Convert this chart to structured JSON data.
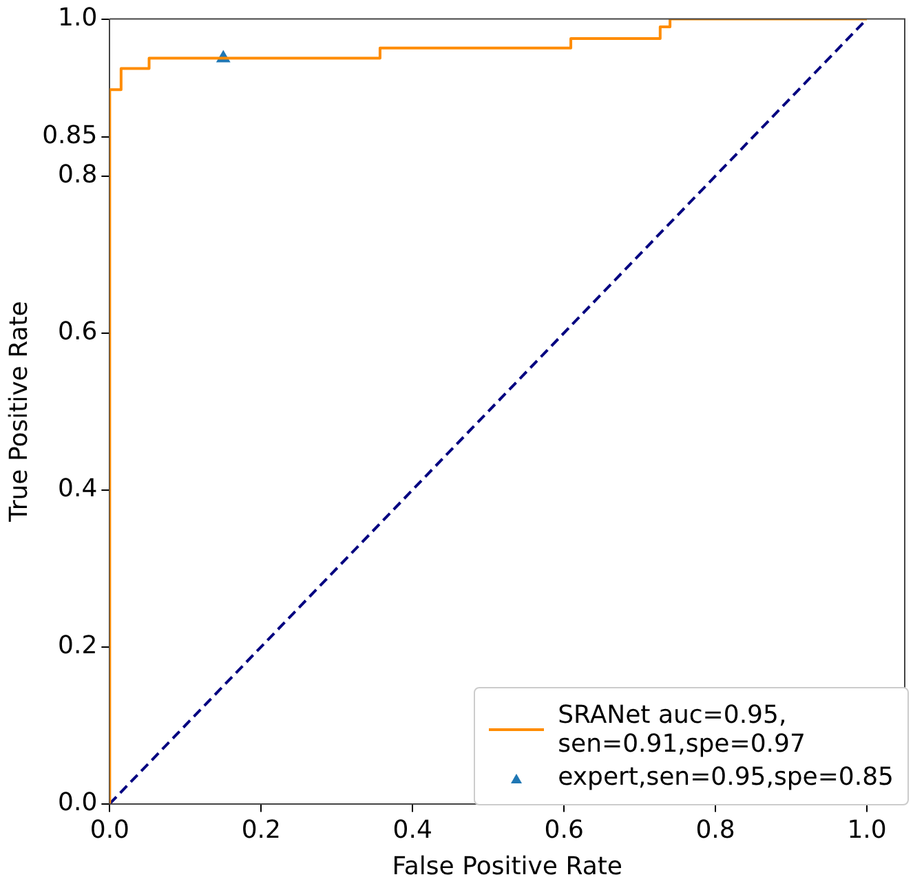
{
  "chart_data": {
    "type": "line",
    "xlabel": "False Positive Rate",
    "ylabel": "True Positive Rate",
    "xlim": [
      0,
      1.05
    ],
    "ylim": [
      0,
      1
    ],
    "xticks": [
      {
        "value": 0,
        "label": "0.0"
      },
      0.2,
      0.4,
      0.6,
      0.8,
      {
        "value": 1,
        "label": "1.0"
      }
    ],
    "yticks": [
      {
        "value": 0,
        "label": "0.0"
      },
      0.2,
      0.4,
      0.6,
      0.8,
      0.85,
      {
        "value": 1,
        "label": "1.0"
      }
    ],
    "grid": false,
    "legend": "bottom right",
    "series": [
      {
        "type": "step",
        "name": "SRANet auc=0.95,\nsen=0.91,spe=0.97",
        "color": "#ff8c00",
        "line_style": "solid",
        "marker": "none",
        "x": [
          0,
          0,
          0.015,
          0.052,
          0.357,
          0.609,
          0.727,
          0.74,
          0.846,
          1
        ],
        "values": [
          0,
          0.85,
          0.91,
          0.937,
          0.95,
          0.963,
          0.975,
          0.99,
          1,
          1
        ]
      },
      {
        "color": "#000080",
        "line_style": "dashed",
        "marker": "none",
        "x": [
          0,
          1
        ],
        "values": [
          0,
          1
        ]
      },
      {
        "type": "scatter",
        "name": "expert,sen=0.95,spe=0.85",
        "color": "#1f77b4",
        "marker": "triangle",
        "x": [
          0.15
        ],
        "values": [
          0.95
        ]
      }
    ]
  }
}
